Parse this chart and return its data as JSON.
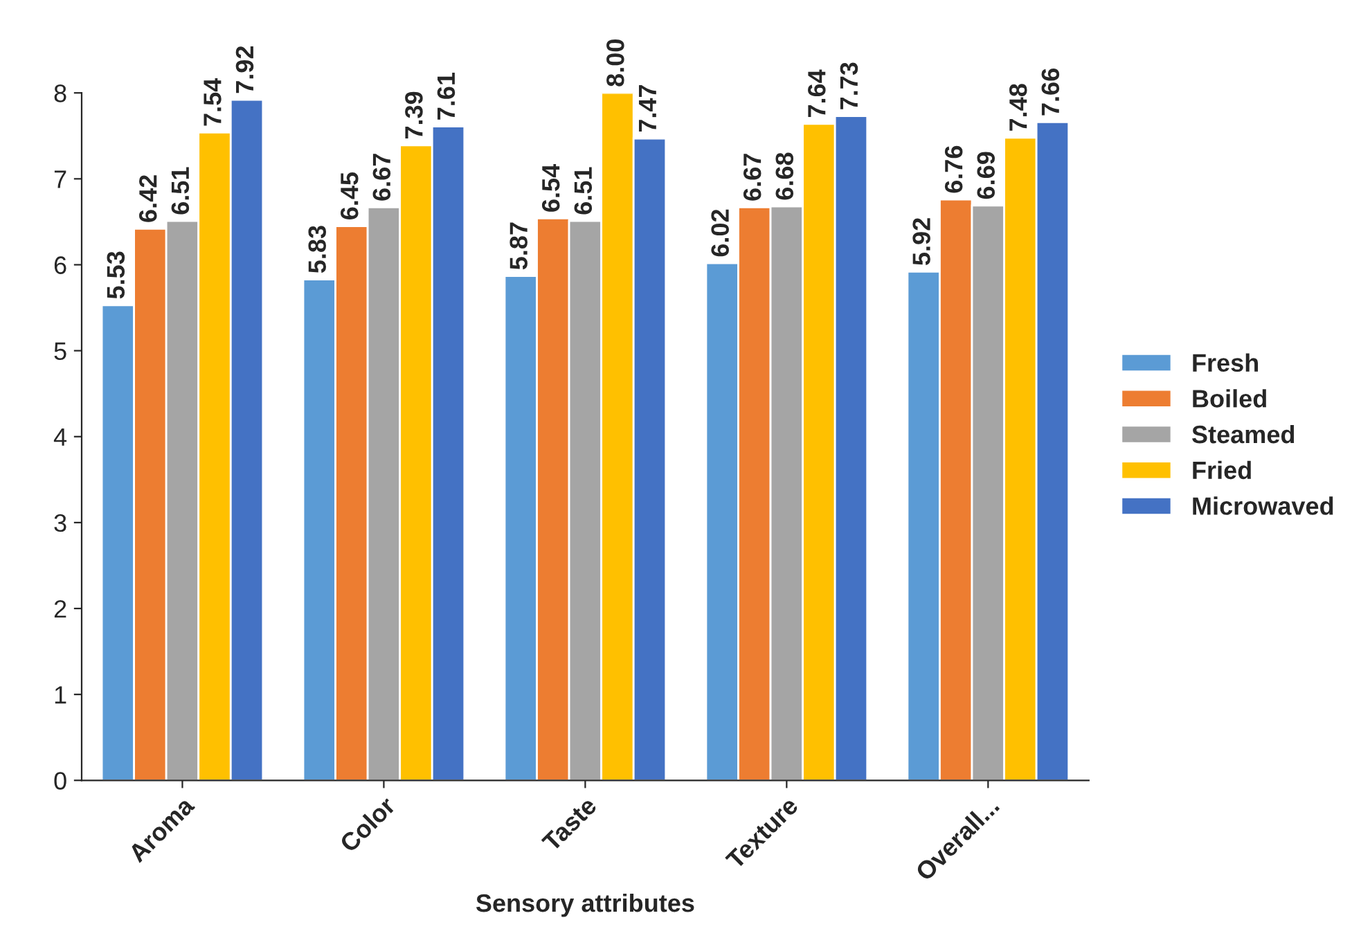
{
  "chart_data": {
    "type": "bar",
    "xlabel": "Sensory attributes",
    "categories": [
      "Aroma",
      "Color",
      "Taste",
      "Texture",
      "Overall..."
    ],
    "series": [
      {
        "name": "Fresh",
        "color": "#5b9bd5",
        "values": [
          5.53,
          5.83,
          5.87,
          6.02,
          5.92
        ],
        "value_labels": [
          "5.53",
          "5.83",
          "5.87",
          "6.02",
          "5.92"
        ]
      },
      {
        "name": "Boiled",
        "color": "#ed7d31",
        "values": [
          6.42,
          6.45,
          6.54,
          6.67,
          6.76
        ],
        "value_labels": [
          "6.42",
          "6.45",
          "6.54",
          "6.67",
          "6.76"
        ]
      },
      {
        "name": "Steamed",
        "color": "#a5a5a5",
        "values": [
          6.51,
          6.67,
          6.51,
          6.68,
          6.69
        ],
        "value_labels": [
          "6.51",
          "6.67",
          "6.51",
          "6.68",
          "6.69"
        ]
      },
      {
        "name": "Fried",
        "color": "#ffc000",
        "values": [
          7.54,
          7.39,
          8.0,
          7.64,
          7.48
        ],
        "value_labels": [
          "7.54",
          "7.39",
          "8.00",
          "7.64",
          "7.48"
        ]
      },
      {
        "name": "Microwaved",
        "color": "#4472c4",
        "values": [
          7.92,
          7.61,
          7.47,
          7.73,
          7.66
        ],
        "value_labels": [
          "7.92",
          "7.61",
          "7.47",
          "7.73",
          "7.66"
        ]
      }
    ],
    "ylim": [
      0,
      8
    ],
    "yticks": [
      0,
      1,
      2,
      3,
      4,
      5,
      6,
      7,
      8
    ],
    "grid": false,
    "legend": "right"
  }
}
